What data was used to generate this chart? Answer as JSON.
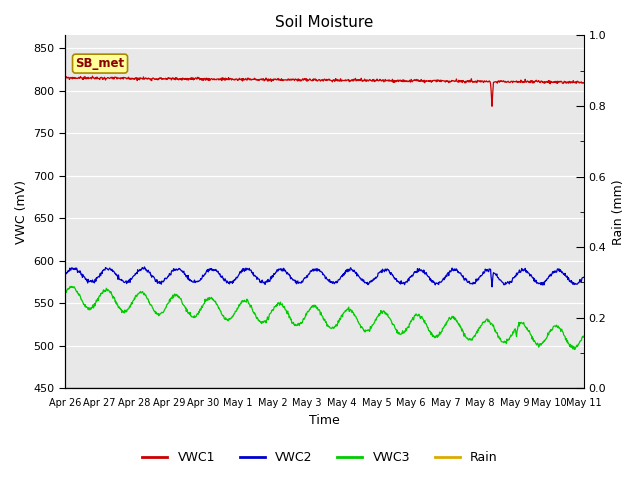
{
  "title": "Soil Moisture",
  "xlabel": "Time",
  "ylabel_left": "VWC (mV)",
  "ylabel_right": "Rain (mm)",
  "ylim_left": [
    450,
    865
  ],
  "ylim_right": [
    0.0,
    1.0
  ],
  "yticks_left": [
    450,
    500,
    550,
    600,
    650,
    700,
    750,
    800,
    850
  ],
  "yticks_right": [
    0.0,
    0.2,
    0.4,
    0.6,
    0.8,
    1.0
  ],
  "x_tick_labels": [
    "Apr 26",
    "Apr 27",
    "Apr 28",
    "Apr 29",
    "Apr 30",
    "May 1",
    "May 2",
    "May 3",
    "May 4",
    "May 5",
    "May 6",
    "May 7",
    "May 8",
    "May 9",
    "May 10",
    "May 11"
  ],
  "annotation_text": "SB_met",
  "colors": {
    "VWC1": "#cc0000",
    "VWC2": "#0000cc",
    "VWC3": "#00cc00",
    "Rain": "#ddaa00",
    "annotation_bg": "#ffff99",
    "annotation_border": "#aa8800"
  },
  "background_color": "#e8e8e8",
  "n_days": 15,
  "n_points": 1080
}
